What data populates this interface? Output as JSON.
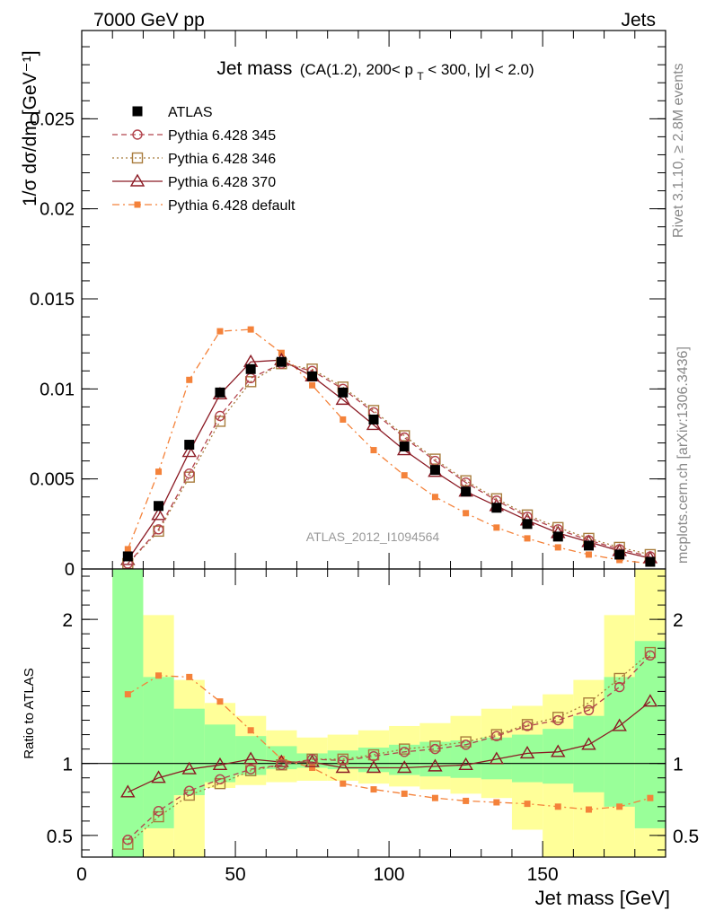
{
  "header": {
    "energy": "7000 GeV pp",
    "process": "Jets",
    "rivet": "Rivet 3.1.10, ≥ 2.8M events",
    "mcplots": "mcplots.cern.ch [arXiv:1306.3436]",
    "analysis": "ATLAS_2012_I1094564"
  },
  "title": {
    "main": "Jet mass",
    "sub_prefix": "(CA(1.2), 200< p",
    "sub_sub": "T",
    "sub_suffix": " < 300, |y| < 2.0)"
  },
  "colors": {
    "atlas": "#000000",
    "p345": "#b2434c",
    "p346": "#a87c3c",
    "p370": "#8b1a24",
    "default": "#f4823a",
    "band_inner": "#99ff99",
    "band_outer": "#ffff99"
  },
  "chart_data": [
    {
      "type": "line",
      "panel": "main",
      "xlabel": "Jet mass [GeV]",
      "ylabel": "1/σ dσ/dm [GeV⁻¹]",
      "xlim": [
        0,
        190
      ],
      "ylim": [
        0,
        0.0299
      ],
      "yticks": [
        {
          "v": 0,
          "label": "0"
        },
        {
          "v": 0.005,
          "label": "0.005"
        },
        {
          "v": 0.01,
          "label": "0.01"
        },
        {
          "v": 0.015,
          "label": "0.015"
        },
        {
          "v": 0.02,
          "label": "0.02"
        },
        {
          "v": 0.025,
          "label": "0.025"
        }
      ],
      "x": [
        15,
        25,
        35,
        45,
        55,
        65,
        75,
        85,
        95,
        105,
        115,
        125,
        135,
        145,
        155,
        165,
        175,
        185
      ],
      "legend_position": "top-left",
      "series": [
        {
          "name": "ATLAS",
          "key": "atlas",
          "marker": "filled-square",
          "line": "none",
          "values": [
            0.0007,
            0.0035,
            0.0069,
            0.0098,
            0.0111,
            0.0115,
            0.0107,
            0.0098,
            0.0083,
            0.0068,
            0.0055,
            0.0043,
            0.0034,
            0.0025,
            0.0018,
            0.0013,
            0.0008,
            0.0004
          ]
        },
        {
          "name": "Pythia 6.428 345",
          "key": "p345",
          "marker": "open-circle",
          "line": "dashed",
          "values": [
            0.0003,
            0.0022,
            0.0053,
            0.0085,
            0.0106,
            0.0114,
            0.011,
            0.01,
            0.0087,
            0.0073,
            0.006,
            0.0048,
            0.0038,
            0.0029,
            0.0022,
            0.0016,
            0.0011,
            0.0007
          ]
        },
        {
          "name": "Pythia 6.428 346",
          "key": "p346",
          "marker": "open-square",
          "line": "dotted",
          "values": [
            0.0003,
            0.0021,
            0.0051,
            0.0082,
            0.0104,
            0.0114,
            0.0111,
            0.0101,
            0.0088,
            0.0074,
            0.0061,
            0.0049,
            0.0039,
            0.003,
            0.0023,
            0.0017,
            0.0012,
            0.0008
          ]
        },
        {
          "name": "Pythia 6.428 370",
          "key": "p370",
          "marker": "open-triangle",
          "line": "solid",
          "values": [
            0.0005,
            0.003,
            0.0065,
            0.0097,
            0.0115,
            0.0116,
            0.0107,
            0.0094,
            0.008,
            0.0066,
            0.0054,
            0.0043,
            0.0035,
            0.0027,
            0.002,
            0.0015,
            0.001,
            0.0006
          ]
        },
        {
          "name": "Pythia 6.428 default",
          "key": "default",
          "marker": "small-filled-square",
          "line": "dash-dot",
          "values": [
            0.0011,
            0.0054,
            0.0105,
            0.0132,
            0.0133,
            0.012,
            0.0102,
            0.0083,
            0.0066,
            0.0052,
            0.004,
            0.0031,
            0.0023,
            0.0017,
            0.0012,
            0.0008,
            0.0005,
            0.0003
          ]
        }
      ]
    },
    {
      "type": "line",
      "panel": "ratio",
      "xlabel": "Jet mass [GeV]",
      "ylabel": "Ratio to ATLAS",
      "xlim": [
        0,
        190
      ],
      "ylim": [
        0.35,
        2.35
      ],
      "xticks": [
        {
          "v": 0,
          "label": "0"
        },
        {
          "v": 50,
          "label": "50"
        },
        {
          "v": 100,
          "label": "100"
        },
        {
          "v": 150,
          "label": "150"
        }
      ],
      "yticks": [
        {
          "v": 0.5,
          "label": "0.5"
        },
        {
          "v": 1,
          "label": "1"
        },
        {
          "v": 2,
          "label": "2"
        }
      ],
      "reference_line": 1,
      "bins": [
        [
          10,
          20
        ],
        [
          20,
          30
        ],
        [
          30,
          40
        ],
        [
          40,
          50
        ],
        [
          50,
          60
        ],
        [
          60,
          70
        ],
        [
          70,
          80
        ],
        [
          80,
          90
        ],
        [
          90,
          100
        ],
        [
          100,
          110
        ],
        [
          110,
          120
        ],
        [
          120,
          130
        ],
        [
          130,
          140
        ],
        [
          140,
          150
        ],
        [
          150,
          160
        ],
        [
          160,
          170
        ],
        [
          170,
          180
        ],
        [
          180,
          190
        ]
      ],
      "band_inner": [
        [
          0.3,
          2.4
        ],
        [
          0.55,
          1.6
        ],
        [
          0.78,
          1.38
        ],
        [
          0.87,
          1.27
        ],
        [
          0.92,
          1.19
        ],
        [
          0.96,
          1.12
        ],
        [
          0.97,
          1.07
        ],
        [
          0.96,
          1.09
        ],
        [
          0.94,
          1.11
        ],
        [
          0.92,
          1.13
        ],
        [
          0.91,
          1.15
        ],
        [
          0.9,
          1.16
        ],
        [
          0.89,
          1.18
        ],
        [
          0.87,
          1.2
        ],
        [
          0.86,
          1.24
        ],
        [
          0.8,
          1.33
        ],
        [
          0.7,
          1.6
        ],
        [
          0.55,
          1.85
        ]
      ],
      "band_outer": [
        [
          0.3,
          2.4
        ],
        [
          0.3,
          2.03
        ],
        [
          0.3,
          1.58
        ],
        [
          0.83,
          1.42
        ],
        [
          0.85,
          1.33
        ],
        [
          0.87,
          1.23
        ],
        [
          0.88,
          1.18
        ],
        [
          0.88,
          1.2
        ],
        [
          0.86,
          1.23
        ],
        [
          0.84,
          1.26
        ],
        [
          0.82,
          1.28
        ],
        [
          0.79,
          1.33
        ],
        [
          0.76,
          1.38
        ],
        [
          0.54,
          1.4
        ],
        [
          0.3,
          1.48
        ],
        [
          0.3,
          1.58
        ],
        [
          0.3,
          2.03
        ],
        [
          0.3,
          2.4
        ]
      ],
      "series": [
        {
          "key": "p345",
          "values": [
            0.47,
            0.67,
            0.81,
            0.89,
            0.96,
            0.99,
            1.03,
            1.02,
            1.05,
            1.08,
            1.1,
            1.13,
            1.19,
            1.26,
            1.3,
            1.37,
            1.53,
            1.75
          ]
        },
        {
          "key": "p346",
          "values": [
            0.44,
            0.63,
            0.78,
            0.86,
            0.95,
            0.99,
            1.03,
            1.03,
            1.06,
            1.1,
            1.12,
            1.15,
            1.2,
            1.27,
            1.32,
            1.42,
            1.59,
            1.77
          ]
        },
        {
          "key": "p370",
          "values": [
            0.8,
            0.9,
            0.96,
            0.99,
            1.03,
            1.01,
            1.01,
            0.97,
            0.97,
            0.97,
            0.98,
            0.99,
            1.03,
            1.07,
            1.08,
            1.13,
            1.26,
            1.43
          ]
        },
        {
          "key": "default",
          "values": [
            1.48,
            1.61,
            1.6,
            1.43,
            1.23,
            1.03,
            0.97,
            0.86,
            0.82,
            0.79,
            0.76,
            0.74,
            0.73,
            0.72,
            0.7,
            0.68,
            0.7,
            0.76
          ]
        }
      ]
    }
  ]
}
